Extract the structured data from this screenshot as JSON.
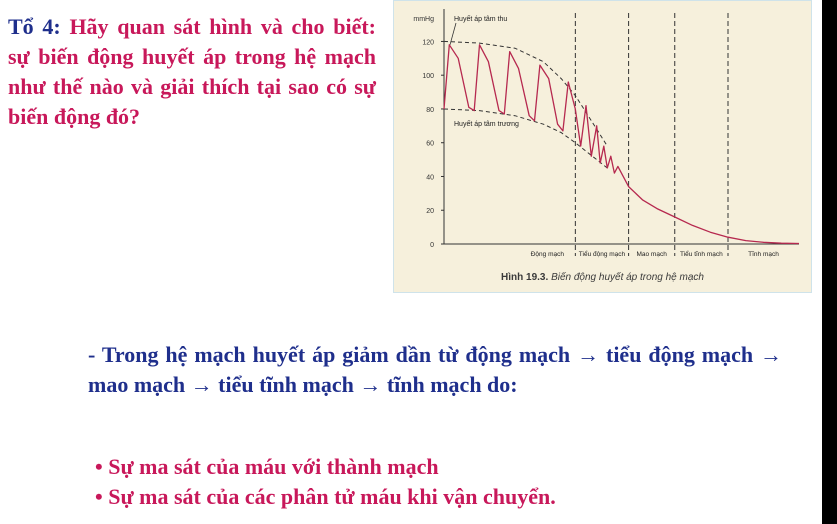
{
  "slide": {
    "question_lead": "Tổ 4:",
    "question_body": "Hãy quan sát hình và cho biết: sự biến động huyết áp trong hệ mạch như thế nào và giải thích tại sao có sự biến động đó?",
    "answer": "- Trong hệ mạch huyết áp giảm dần từ động mạch → tiểu động mạch → mao mạch → tiểu tĩnh mạch → tĩnh mạch do:",
    "bullets": [
      "• Sự ma sát của máu với thành mạch",
      "• Sự ma sát của các phân tử máu khi vận chuyển."
    ]
  },
  "figure": {
    "caption_label": "Hình 19.3.",
    "caption_text": "Biến động huyết áp trong hệ mạch",
    "colors": {
      "curve": "#b6294f",
      "envelope": "#333333",
      "dashed_dividers": "#333333",
      "background": "#f6f0dc"
    }
  },
  "chart_data": {
    "type": "line",
    "ylabel": "mmHg",
    "ylim": [
      0,
      125
    ],
    "yticks": [
      0,
      20,
      40,
      60,
      80,
      100,
      120
    ],
    "regions": [
      "Động mạch",
      "Tiểu động mạch",
      "Mao mạch",
      "Tiểu tĩnh mạch",
      "Tĩnh mạch"
    ],
    "annotations": [
      "Huyết áp tâm thu",
      "Huyết áp tâm trương"
    ],
    "xlim": [
      0,
      100
    ],
    "dividers": [
      37,
      52,
      65,
      80
    ],
    "series": [
      {
        "name": "Huyết áp tâm thu",
        "style": "dashed",
        "x": [
          0,
          10,
          20,
          28,
          33,
          37,
          40,
          43,
          46
        ],
        "y": [
          120,
          119,
          116,
          108,
          98,
          88,
          78,
          68,
          58
        ]
      },
      {
        "name": "Huyết áp tâm trương",
        "style": "dashed",
        "x": [
          0,
          10,
          20,
          28,
          33,
          37,
          40,
          43,
          46
        ],
        "y": [
          80,
          79,
          76,
          71,
          66,
          60,
          55,
          50,
          45
        ]
      },
      {
        "name": "Huyết áp",
        "style": "solid",
        "x": [
          0,
          1.5,
          4,
          7,
          8.5,
          10,
          12.5,
          15.5,
          17,
          18.5,
          21,
          24,
          25.5,
          27,
          29.5,
          32,
          33.5,
          35,
          37,
          38.5,
          40,
          41.5,
          43,
          44,
          45,
          46,
          47,
          48,
          49,
          52,
          56,
          60,
          65,
          70,
          75,
          80,
          85,
          90,
          95,
          100
        ],
        "y": [
          80,
          118,
          110,
          81,
          79,
          118,
          108,
          79,
          77,
          114,
          104,
          76,
          73,
          106,
          98,
          71,
          67,
          96,
          80,
          58,
          82,
          52,
          70,
          48,
          58,
          45,
          52,
          42,
          46,
          34,
          26,
          21,
          16,
          11,
          7,
          4,
          2,
          1,
          0.5,
          0.3
        ]
      }
    ]
  }
}
